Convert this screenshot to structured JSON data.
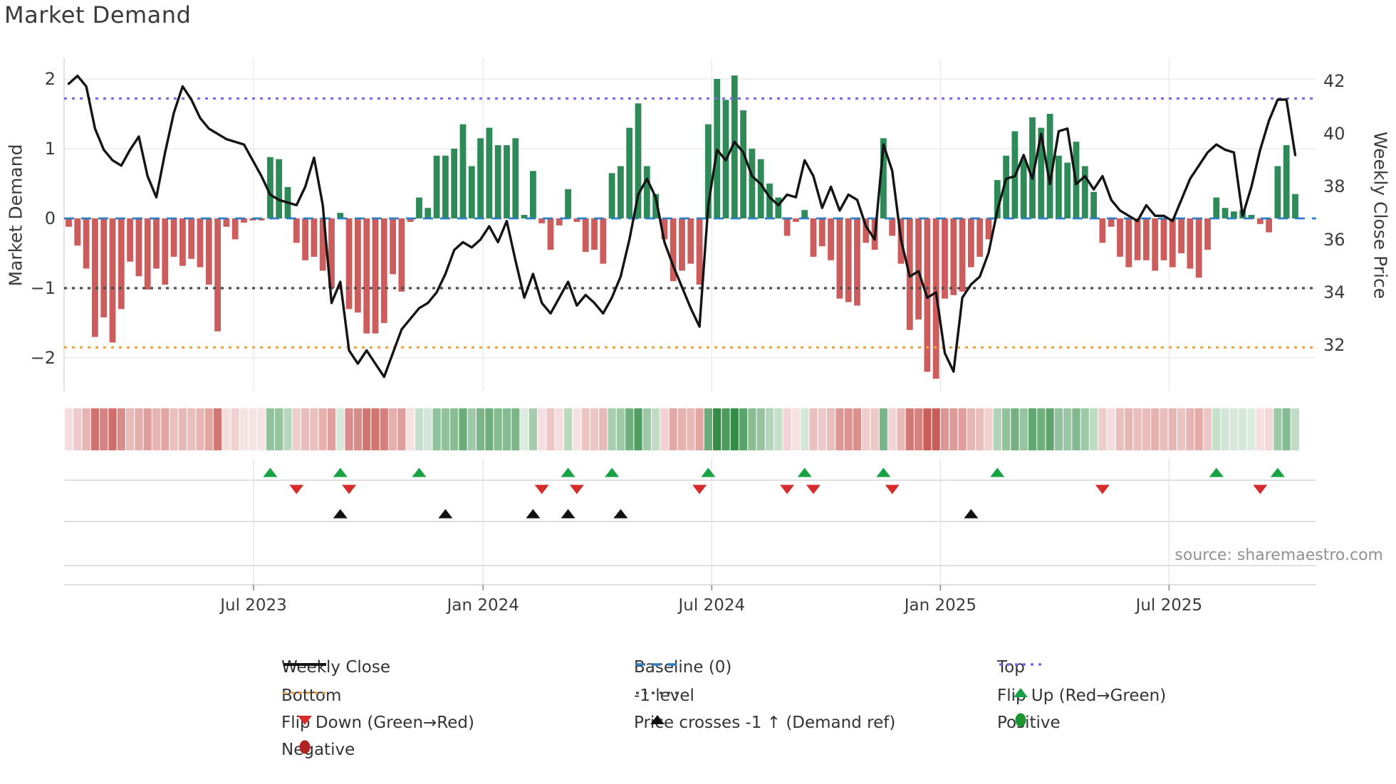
{
  "title": "Market Demand",
  "source": "source: sharemaestro.com",
  "axes": {
    "left": {
      "label": "Market Demand",
      "ticks": [
        2,
        1,
        0,
        -1,
        -2
      ]
    },
    "right": {
      "label": "Weekly Close Price",
      "ticks": [
        42,
        40,
        38,
        36,
        34,
        32
      ]
    },
    "x": {
      "ticks": [
        {
          "label": "Jul 2023",
          "week": 21.1
        },
        {
          "label": "Jan 2024",
          "week": 47.3
        },
        {
          "label": "Jul 2024",
          "week": 73.4
        },
        {
          "label": "Jan 2025",
          "week": 99.5
        },
        {
          "label": "Jul 2025",
          "week": 125.6
        }
      ]
    }
  },
  "colors": {
    "bar_positive": "#2e8b57",
    "bar_negative": "#cd5c5c",
    "price_line": "#141414",
    "baseline": "#2d7fc1",
    "top_line": "#7b68ee",
    "bottom_line": "#f0a13f",
    "minus_one_line": "#4d4d4d",
    "flip_up_marker": "#17a244",
    "flip_down_marker": "#d62b2b",
    "cross_marker": "#111111",
    "positive_marker": "#1d9632",
    "negative_marker": "#b22222",
    "grid": "#ebebeb",
    "band_line": "#d6d6d6",
    "heat_pos_rgb": "40,135,60",
    "heat_neg_rgb": "198,85,80"
  },
  "chart_data": {
    "type": "bar+line combo with heatmap strip and event-marker rows",
    "x_unit": "weekly",
    "demand_axis_range": [
      -2.48,
      2.3
    ],
    "price_axis_range": [
      30.4,
      42.8
    ],
    "ref_levels": {
      "top": 1.72,
      "baseline": 0,
      "minus_one": -1,
      "bottom": -1.85
    },
    "demand_bars": [
      -0.12,
      -0.39,
      -0.72,
      -1.7,
      -1.42,
      -1.78,
      -1.3,
      -0.62,
      -0.83,
      -1.02,
      -0.72,
      -0.95,
      -0.55,
      -0.68,
      -0.58,
      -0.7,
      -0.95,
      -1.62,
      -0.12,
      -0.3,
      -0.06,
      -0.03,
      -0.03,
      0.88,
      0.85,
      0.45,
      -0.35,
      -0.6,
      -0.55,
      -0.75,
      -1.0,
      0.08,
      -1.3,
      -1.35,
      -1.65,
      -1.65,
      -1.5,
      -0.8,
      -1.05,
      -0.05,
      0.3,
      0.15,
      0.9,
      0.9,
      1.0,
      1.35,
      0.75,
      1.15,
      1.3,
      1.05,
      1.05,
      1.15,
      0.05,
      0.68,
      -0.07,
      -0.45,
      -0.1,
      0.42,
      -0.05,
      -0.48,
      -0.45,
      -0.65,
      0.65,
      0.75,
      1.3,
      1.65,
      0.75,
      0.35,
      -0.3,
      -0.9,
      -0.75,
      -0.65,
      -0.95,
      1.35,
      2.0,
      1.7,
      2.05,
      1.55,
      1.0,
      0.85,
      0.5,
      0.3,
      -0.25,
      -0.05,
      0.12,
      -0.55,
      -0.4,
      -0.6,
      -1.15,
      -1.2,
      -1.25,
      -0.35,
      -0.45,
      1.15,
      -0.25,
      -0.65,
      -1.6,
      -1.45,
      -2.2,
      -2.3,
      -1.15,
      -1.1,
      -1.05,
      -0.7,
      -0.55,
      -0.3,
      0.55,
      0.9,
      1.25,
      0.85,
      1.45,
      1.3,
      1.5,
      0.9,
      0.8,
      1.1,
      0.75,
      0.38,
      -0.35,
      -0.12,
      -0.55,
      -0.7,
      -0.6,
      -0.6,
      -0.75,
      -0.6,
      -0.7,
      -0.5,
      -0.72,
      -0.85,
      -0.45,
      0.3,
      0.15,
      0.1,
      0.12,
      0.05,
      -0.08,
      -0.2,
      0.75,
      1.05,
      0.35
    ],
    "weekly_close_price": [
      41.9,
      42.2,
      41.8,
      40.2,
      39.4,
      39.0,
      38.8,
      39.4,
      39.9,
      38.4,
      37.6,
      39.3,
      40.8,
      41.8,
      41.3,
      40.6,
      40.2,
      40.0,
      39.8,
      39.7,
      39.6,
      39.0,
      38.4,
      37.7,
      37.5,
      37.4,
      37.3,
      38.0,
      39.1,
      37.3,
      33.6,
      34.4,
      31.8,
      31.3,
      31.8,
      31.3,
      30.8,
      31.7,
      32.6,
      33.0,
      33.4,
      33.6,
      34.0,
      34.7,
      35.6,
      35.9,
      35.7,
      36.0,
      36.5,
      35.9,
      36.7,
      35.2,
      33.8,
      34.7,
      33.6,
      33.2,
      33.8,
      34.4,
      33.5,
      33.9,
      33.6,
      33.2,
      33.8,
      34.6,
      36.0,
      37.7,
      38.3,
      37.6,
      35.9,
      35.0,
      34.2,
      33.4,
      32.7,
      37.3,
      39.4,
      39.0,
      39.7,
      39.3,
      38.4,
      38.1,
      37.6,
      37.3,
      37.7,
      37.6,
      39.0,
      38.4,
      37.2,
      38.0,
      37.1,
      37.7,
      37.5,
      36.5,
      36.0,
      39.6,
      38.6,
      36.0,
      34.6,
      34.8,
      33.8,
      34.0,
      31.7,
      31.0,
      33.8,
      34.3,
      34.6,
      35.5,
      37.1,
      38.3,
      38.4,
      39.2,
      38.3,
      40.0,
      38.1,
      40.1,
      40.2,
      38.1,
      38.4,
      37.9,
      38.4,
      37.5,
      37.1,
      36.9,
      36.7,
      37.3,
      36.9,
      36.9,
      36.7,
      37.5,
      38.3,
      38.8,
      39.3,
      39.6,
      39.4,
      39.3,
      36.9,
      38.0,
      39.4,
      40.5,
      41.3,
      41.3,
      39.2
    ],
    "markers": {
      "flip_up_weeks": [
        23,
        31,
        40,
        57,
        62,
        73,
        84,
        93,
        106,
        131,
        138
      ],
      "flip_down_weeks": [
        26,
        32,
        54,
        58,
        72,
        82,
        85,
        94,
        118,
        136
      ],
      "price_cross_weeks": [
        31,
        43,
        53,
        57,
        63,
        103
      ]
    }
  },
  "legend": {
    "items": [
      {
        "label": "Weekly Close",
        "kind": "solid",
        "color": "#141414",
        "col": 0,
        "row": 0
      },
      {
        "label": "Baseline (0)",
        "kind": "dashed",
        "color": "#2d7fc1",
        "col": 1,
        "row": 0
      },
      {
        "label": "Top",
        "kind": "dotted",
        "color": "#7b68ee",
        "col": 2,
        "row": 0
      },
      {
        "label": "Bottom",
        "kind": "dotted",
        "color": "#f0a13f",
        "col": 0,
        "row": 1
      },
      {
        "label": "-1 level",
        "kind": "dotted",
        "color": "#4d4d4d",
        "col": 1,
        "row": 1
      },
      {
        "label": "Flip Up (Red→Green)",
        "kind": "tri-up",
        "color": "#17a244",
        "col": 2,
        "row": 1
      },
      {
        "label": "Flip Down (Green→Red)",
        "kind": "tri-down",
        "color": "#d62b2b",
        "col": 0,
        "row": 2
      },
      {
        "label": "Price crosses -1 ↑ (Demand ref)",
        "kind": "tri-up",
        "color": "#111111",
        "col": 1,
        "row": 2
      },
      {
        "label": "Positive",
        "kind": "circle",
        "color": "#1d9632",
        "col": 2,
        "row": 2
      },
      {
        "label": "Negative",
        "kind": "circle",
        "color": "#b22222",
        "col": 0,
        "row": 3
      }
    ]
  }
}
